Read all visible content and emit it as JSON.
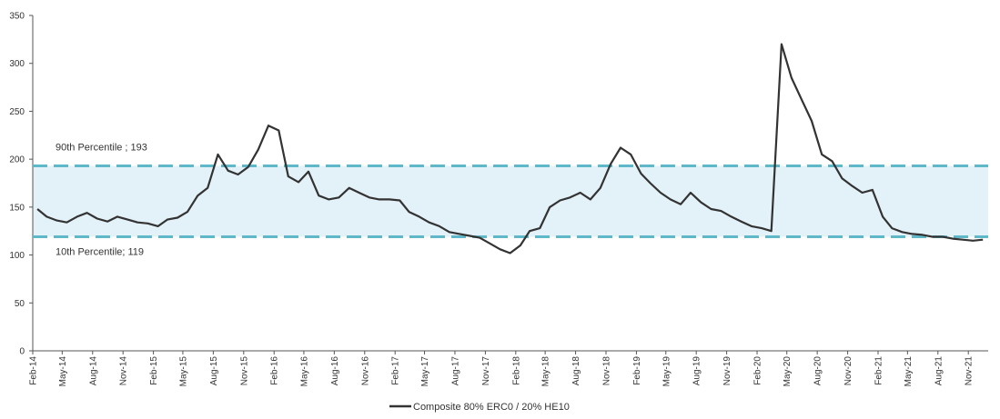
{
  "chart_data": {
    "type": "line",
    "title": "",
    "xlabel": "",
    "ylabel": "",
    "ylim": [
      0,
      350
    ],
    "y_ticks": [
      0,
      50,
      100,
      150,
      200,
      250,
      300,
      350
    ],
    "x_range": [
      "2014-02-01",
      "2021-12-31"
    ],
    "x_tick_labels": [
      "Feb-14",
      "May-14",
      "Aug-14",
      "Nov-14",
      "Feb-15",
      "May-15",
      "Aug-15",
      "Nov-15",
      "Feb-16",
      "May-16",
      "Aug-16",
      "Nov-16",
      "Feb-17",
      "May-17",
      "Aug-17",
      "Nov-17",
      "Feb-18",
      "May-18",
      "Aug-18",
      "Nov-18",
      "Feb-19",
      "May-19",
      "Aug-19",
      "Nov-19",
      "Feb-20",
      "May-20",
      "Aug-20",
      "Nov-20",
      "Feb-21",
      "May-21",
      "Aug-21",
      "Nov-21"
    ],
    "grid": false,
    "legend_position": "bottom",
    "bands": [
      {
        "label": "90th Percentile ; 193",
        "value": 193,
        "color": "#5fb8c8"
      },
      {
        "label": "10th Percentile; 119",
        "value": 119,
        "color": "#5fb8c8"
      }
    ],
    "band_fill": "#e3f2f8",
    "line_color": "#333333",
    "series": [
      {
        "name": "Composite 80% ERC0 / 20% HE10",
        "x": [
          "2014-02",
          "2014-03",
          "2014-04",
          "2014-05",
          "2014-06",
          "2014-07",
          "2014-08",
          "2014-09",
          "2014-10",
          "2014-11",
          "2014-12",
          "2015-01",
          "2015-02",
          "2015-03",
          "2015-04",
          "2015-05",
          "2015-06",
          "2015-07",
          "2015-08",
          "2015-09",
          "2015-10",
          "2015-11",
          "2015-12",
          "2016-01",
          "2016-02",
          "2016-03",
          "2016-04",
          "2016-05",
          "2016-06",
          "2016-07",
          "2016-08",
          "2016-09",
          "2016-10",
          "2016-11",
          "2016-12",
          "2017-01",
          "2017-02",
          "2017-03",
          "2017-04",
          "2017-05",
          "2017-06",
          "2017-07",
          "2017-08",
          "2017-09",
          "2017-10",
          "2017-11",
          "2017-12",
          "2018-01",
          "2018-02",
          "2018-03",
          "2018-04",
          "2018-05",
          "2018-06",
          "2018-07",
          "2018-08",
          "2018-09",
          "2018-10",
          "2018-11",
          "2018-12",
          "2019-01",
          "2019-02",
          "2019-03",
          "2019-04",
          "2019-05",
          "2019-06",
          "2019-07",
          "2019-08",
          "2019-09",
          "2019-10",
          "2019-11",
          "2019-12",
          "2020-01",
          "2020-02",
          "2020-03",
          "2020-04",
          "2020-05",
          "2020-06",
          "2020-07",
          "2020-08",
          "2020-09",
          "2020-10",
          "2020-11",
          "2020-12",
          "2021-01",
          "2021-02",
          "2021-03",
          "2021-04",
          "2021-05",
          "2021-06",
          "2021-07",
          "2021-08",
          "2021-09",
          "2021-10",
          "2021-11",
          "2021-12"
        ],
        "values": [
          148,
          140,
          136,
          134,
          140,
          144,
          138,
          135,
          140,
          137,
          134,
          133,
          130,
          137,
          139,
          145,
          162,
          170,
          205,
          188,
          184,
          192,
          210,
          235,
          230,
          182,
          176,
          187,
          162,
          158,
          160,
          170,
          165,
          160,
          158,
          158,
          157,
          145,
          140,
          134,
          130,
          124,
          122,
          120,
          118,
          112,
          106,
          102,
          110,
          125,
          128,
          150,
          157,
          160,
          165,
          158,
          170,
          195,
          212,
          205,
          185,
          175,
          165,
          158,
          153,
          165,
          155,
          148,
          146,
          140,
          135,
          130,
          128,
          125,
          320,
          285,
          262,
          240,
          205,
          198,
          180,
          172,
          165,
          168,
          140,
          128,
          124,
          122,
          121,
          119,
          119,
          117,
          116,
          115,
          116
        ]
      }
    ]
  },
  "legend": {
    "label": "Composite 80% ERC0 / 20% HE10"
  }
}
